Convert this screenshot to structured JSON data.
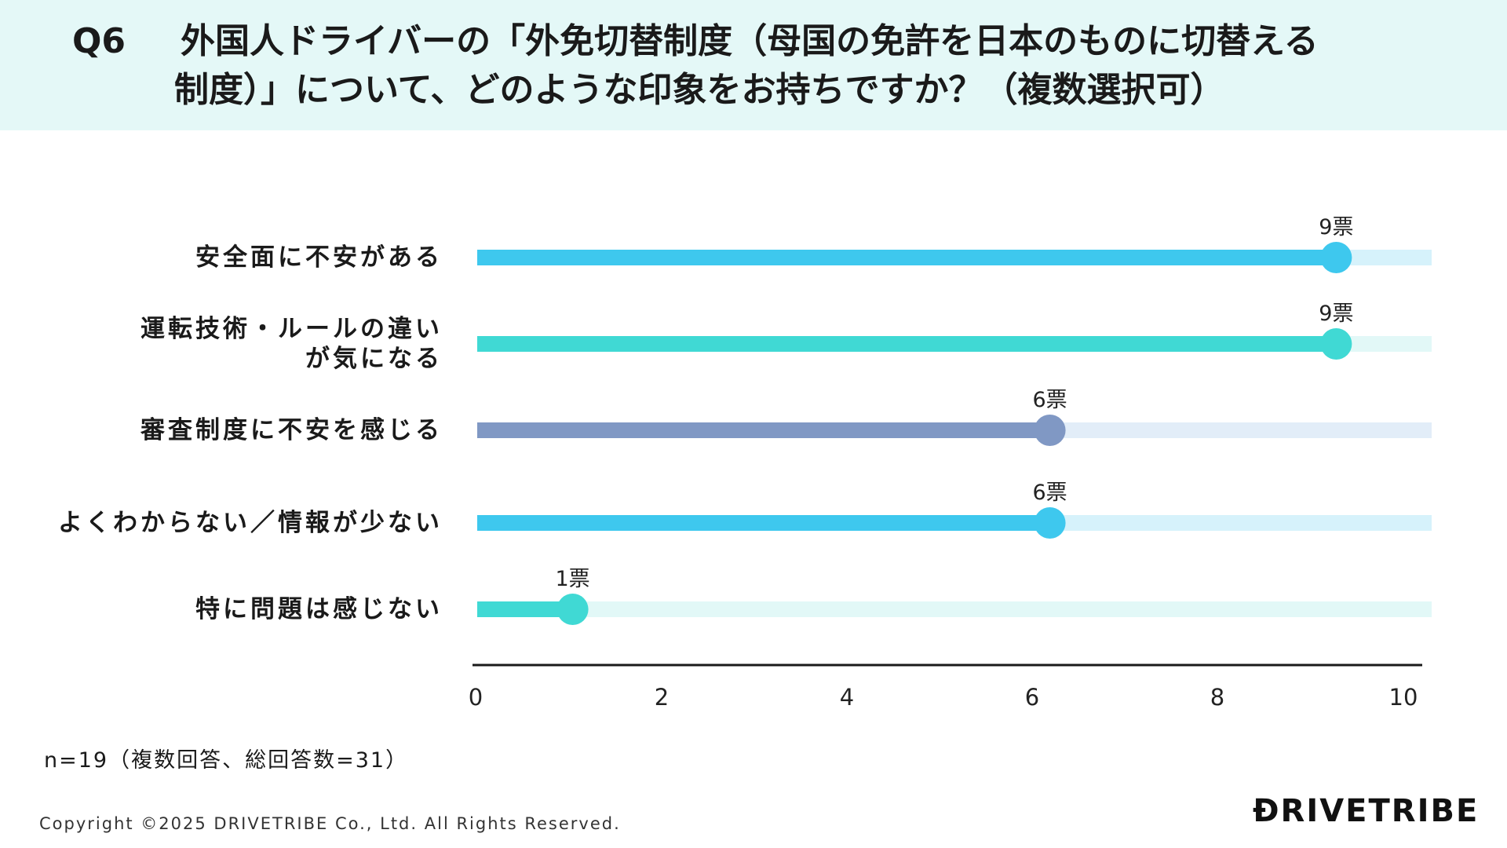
{
  "header": {
    "q_label": "Q6",
    "question_line1": "外国人ドライバーの「外免切替制度（母国の免許を日本のものに切替える",
    "question_line2": "制度）」について、どのような印象をお持ちですか？（複数選択可）"
  },
  "chart_data": {
    "type": "bar",
    "orientation": "horizontal",
    "categories": [
      [
        "安全面に不安がある"
      ],
      [
        "運転技術・ルールの違い",
        "が気になる"
      ],
      [
        "審査制度に不安を感じる"
      ],
      [
        "よくわからない／情報が少ない"
      ],
      [
        "特に問題は感じない"
      ]
    ],
    "values": [
      9,
      9,
      6,
      6,
      1
    ],
    "value_labels": [
      "9票",
      "9票",
      "6票",
      "6票",
      "1票"
    ],
    "xlim": [
      0,
      10
    ],
    "x_ticks": [
      0,
      2,
      4,
      6,
      8,
      10
    ],
    "colors": [
      "#3ec8ee",
      "#40d9d4",
      "#8098c4",
      "#3ec8ee",
      "#40d9d4"
    ],
    "track_colors": [
      "#d6f2fb",
      "#e2f8f7",
      "#e2edf8",
      "#d6f2fb",
      "#e2f8f7"
    ],
    "grid": false,
    "legend": "none"
  },
  "footnote": "n=19（複数回答、総回答数=31）",
  "copyright": "Copyright ©2025 DRIVETRIBE Co., Ltd. All Rights Reserved.",
  "logo": "ƉRIVETRIBE"
}
